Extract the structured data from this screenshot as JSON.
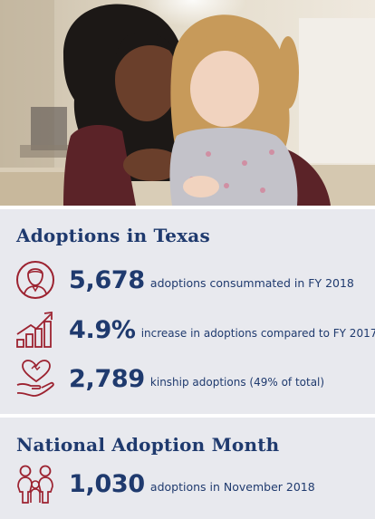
{
  "photo": {
    "icon": "mother-and-daughter-photo"
  },
  "texas": {
    "title": "Adoptions in Texas",
    "stats": [
      {
        "value": "5,678",
        "label": "adoptions consummated in FY 2018",
        "icon": "person-icon"
      },
      {
        "value": "4.9%",
        "label": "increase in adoptions compared to FY 2017",
        "icon": "rising-bar-chart-icon"
      },
      {
        "value": "2,789",
        "label": "kinship adoptions (49% of total)",
        "icon": "heart-in-hand-icon"
      }
    ]
  },
  "national": {
    "title": "National Adoption Month",
    "stats": [
      {
        "value": "1,030",
        "label": "adoptions in November 2018",
        "icon": "family-icon"
      }
    ]
  },
  "colors": {
    "navy": "#1f3a6e",
    "icon_red": "#9c2230",
    "panel": "#e8e9ee"
  }
}
